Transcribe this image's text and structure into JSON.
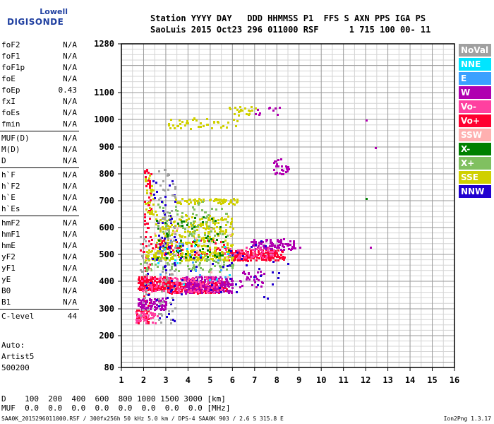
{
  "logo": {
    "line1": "Lowell",
    "line2": "DIGISONDE"
  },
  "header": {
    "line1": "Station YYYY DAY   DDD HHMMSS P1  FFS S AXN PPS IGA PS",
    "line2": "SaoLuis 2015 Oct23 296 011000 RSF      1 715 100 00- 11"
  },
  "params": [
    {
      "name": "foF2",
      "value": "N/A"
    },
    {
      "name": "foF1",
      "value": "N/A"
    },
    {
      "name": "foF1p",
      "value": "N/A"
    },
    {
      "name": "foE",
      "value": "N/A"
    },
    {
      "name": "foEp",
      "value": "0.43"
    },
    {
      "name": "fxI",
      "value": "N/A"
    },
    {
      "name": "foEs",
      "value": "N/A"
    },
    {
      "name": "fmin",
      "value": "N/A"
    },
    {
      "name": "MUF(D)",
      "value": "N/A"
    },
    {
      "name": "M(D)",
      "value": "N/A"
    },
    {
      "name": "D",
      "value": "N/A"
    },
    {
      "name": "h`F",
      "value": "N/A"
    },
    {
      "name": "h`F2",
      "value": "N/A"
    },
    {
      "name": "h`E",
      "value": "N/A"
    },
    {
      "name": "h`Es",
      "value": "N/A"
    },
    {
      "name": "hmF2",
      "value": "N/A"
    },
    {
      "name": "hmF1",
      "value": "N/A"
    },
    {
      "name": "hmE",
      "value": "N/A"
    },
    {
      "name": "yF2",
      "value": "N/A"
    },
    {
      "name": "yF1",
      "value": "N/A"
    },
    {
      "name": "yE",
      "value": "N/A"
    },
    {
      "name": "B0",
      "value": "N/A"
    },
    {
      "name": "B1",
      "value": "N/A"
    },
    {
      "name": "C-level",
      "value": "44"
    }
  ],
  "auto": {
    "line1": "Auto:",
    "line2": "Artist5",
    "line3": "500200"
  },
  "legend": [
    {
      "label": "NoVal",
      "color": "#a0a0a0"
    },
    {
      "label": "NNE",
      "color": "#00e5ff"
    },
    {
      "label": "E",
      "color": "#3aa0ff"
    },
    {
      "label": "W",
      "color": "#b000b0"
    },
    {
      "label": "Vo-",
      "color": "#ff40a0"
    },
    {
      "label": "Vo+",
      "color": "#ff0030"
    },
    {
      "label": "SSW",
      "color": "#ffb0b0"
    },
    {
      "label": "X-",
      "color": "#008000"
    },
    {
      "label": "X+",
      "color": "#80c060"
    },
    {
      "label": "SSE",
      "color": "#d0d000"
    },
    {
      "label": "NNW",
      "color": "#2000d0"
    }
  ],
  "bottom": {
    "line1": "D    100  200  400  600  800 1000 1500 3000 [km]",
    "line2": "MUF  0.0  0.0  0.0  0.0  0.0  0.0  0.0  0.0 [MHz]"
  },
  "footer": "SAA0K_2015296011000.RSF / 300fx256h 50 kHz 5.0 km / DPS-4 SAA0K 903 / 2.6 S 315.8 E",
  "version": "Ion2Png 1.3.17",
  "chart_data": {
    "type": "scatter",
    "title": "",
    "xlabel": "",
    "ylabel": "",
    "xlim": [
      1,
      16
    ],
    "ylim": [
      80,
      1280
    ],
    "x_ticks": [
      1,
      2,
      3,
      4,
      5,
      6,
      7,
      8,
      9,
      10,
      11,
      12,
      13,
      14,
      15,
      16
    ],
    "y_ticks": [
      80,
      200,
      300,
      400,
      500,
      600,
      700,
      800,
      900,
      1000,
      1100,
      1280
    ],
    "y_scale": "nonlinear",
    "y_map": [
      [
        80,
        520
      ],
      [
        200,
        475
      ],
      [
        300,
        437
      ],
      [
        400,
        398
      ],
      [
        500,
        360
      ],
      [
        600,
        322
      ],
      [
        700,
        284
      ],
      [
        800,
        246
      ],
      [
        900,
        208
      ],
      [
        1000,
        169
      ],
      [
        1100,
        131
      ],
      [
        1280,
        62
      ]
    ],
    "grid": true,
    "legend_position": "right",
    "series": [
      {
        "name": "Vo+",
        "clusters": [
          {
            "x": [
              1.7,
              3.2
            ],
            "y": [
              370,
              420
            ],
            "n": 220
          },
          {
            "x": [
              3.0,
              5.8
            ],
            "y": [
              360,
              400
            ],
            "n": 200
          },
          {
            "x": [
              5.8,
              8.3
            ],
            "y": [
              480,
              520
            ],
            "n": 170
          },
          {
            "x": [
              1.6,
              2.2
            ],
            "y": [
              250,
              300
            ],
            "n": 40
          },
          {
            "x": [
              1.8,
              5.6
            ],
            "y": [
              500,
              560
            ],
            "n": 60
          },
          {
            "x": [
              2.0,
              2.3
            ],
            "y": [
              250,
              820
            ],
            "n": 70
          }
        ]
      },
      {
        "name": "W",
        "clusters": [
          {
            "x": [
              3.8,
              6.0
            ],
            "y": [
              360,
              420
            ],
            "n": 230
          },
          {
            "x": [
              1.7,
              3.0
            ],
            "y": [
              300,
              340
            ],
            "n": 90
          },
          {
            "x": [
              6.8,
              8.8
            ],
            "y": [
              520,
              560
            ],
            "n": 90
          },
          {
            "x": [
              7.8,
              8.5
            ],
            "y": [
              800,
              860
            ],
            "n": 25
          },
          {
            "x": [
              6.8,
              8.3
            ],
            "y": [
              1000,
              1050
            ],
            "n": 10
          },
          {
            "x": [
              6.3,
              7.4
            ],
            "y": [
              380,
              440
            ],
            "n": 30
          }
        ]
      },
      {
        "name": "Vo-",
        "clusters": [
          {
            "x": [
              1.8,
              5.5
            ],
            "y": [
              360,
              420
            ],
            "n": 120
          },
          {
            "x": [
              5.5,
              8.0
            ],
            "y": [
              490,
              530
            ],
            "n": 60
          },
          {
            "x": [
              1.6,
              2.6
            ],
            "y": [
              250,
              290
            ],
            "n": 40
          }
        ]
      },
      {
        "name": "SSE",
        "clusters": [
          {
            "x": [
              2.0,
              6.0
            ],
            "y": [
              480,
              520
            ],
            "n": 160
          },
          {
            "x": [
              2.5,
              6.0
            ],
            "y": [
              520,
              650
            ],
            "n": 200
          },
          {
            "x": [
              3.3,
              6.2
            ],
            "y": [
              690,
              710
            ],
            "n": 60
          },
          {
            "x": [
              3.0,
              6.2
            ],
            "y": [
              970,
              1010
            ],
            "n": 40
          },
          {
            "x": [
              5.8,
              7.0
            ],
            "y": [
              1000,
              1060
            ],
            "n": 20
          },
          {
            "x": [
              2.0,
              2.6
            ],
            "y": [
              650,
              800
            ],
            "n": 30
          }
        ]
      },
      {
        "name": "X+",
        "clusters": [
          {
            "x": [
              1.8,
              6.0
            ],
            "y": [
              440,
              500
            ],
            "n": 80
          },
          {
            "x": [
              2.6,
              5.8
            ],
            "y": [
              560,
              700
            ],
            "n": 70
          }
        ]
      },
      {
        "name": "X-",
        "clusters": [
          {
            "x": [
              2.5,
              5.8
            ],
            "y": [
              480,
              650
            ],
            "n": 60
          }
        ]
      },
      {
        "name": "NNW",
        "clusters": [
          {
            "x": [
              1.8,
              8.5
            ],
            "y": [
              330,
              560
            ],
            "n": 60
          },
          {
            "x": [
              2.4,
              3.4
            ],
            "y": [
              250,
              800
            ],
            "n": 50
          }
        ]
      },
      {
        "name": "NNE",
        "clusters": [
          {
            "x": [
              2.5,
              6.0
            ],
            "y": [
              380,
              560
            ],
            "n": 15
          }
        ]
      },
      {
        "name": "E",
        "clusters": [
          {
            "x": [
              2.5,
              6.0
            ],
            "y": [
              380,
              560
            ],
            "n": 15
          }
        ]
      },
      {
        "name": "SSW",
        "clusters": [
          {
            "x": [
              2.0,
              6.0
            ],
            "y": [
              400,
              600
            ],
            "n": 20
          }
        ]
      },
      {
        "name": "NoVal",
        "clusters": [
          {
            "x": [
              2.6,
              3.4
            ],
            "y": [
              250,
              820
            ],
            "n": 80
          },
          {
            "x": [
              1.8,
              2.2
            ],
            "y": [
              260,
              600
            ],
            "n": 20
          }
        ]
      }
    ],
    "isolated_points": [
      {
        "x": 12.0,
        "y": 1000,
        "series": "W"
      },
      {
        "x": 12.4,
        "y": 900,
        "series": "W"
      },
      {
        "x": 12.2,
        "y": 530,
        "series": "W"
      },
      {
        "x": 12.0,
        "y": 710,
        "series": "X-"
      },
      {
        "x": 9.0,
        "y": 530,
        "series": "W"
      }
    ]
  }
}
